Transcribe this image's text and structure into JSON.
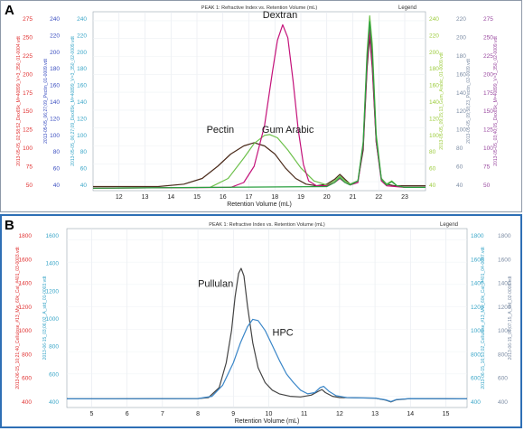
{
  "colors": {
    "pectin": "#4a2a1a",
    "dextran": "#c4137a",
    "gum_arabic": "#6cc04a",
    "extra_green": "#2aa040",
    "pullulan": "#444444",
    "hpc": "#3a86c8",
    "axis_red": "#e03030",
    "axis_blue": "#3a4ec0",
    "axis_cyan": "#3aa6c8",
    "axis_lime": "#9ccc3c",
    "axis_gray": "#7c8ca4",
    "axis_purple": "#9a4aa0"
  },
  "chart_data": [
    {
      "id": "A",
      "panel_label": "A",
      "type": "line",
      "title": "PEAK 1: Refractive Index vs. Retention Volume (mL)",
      "legend_label": "Legend",
      "xlabel": "Retention Volume (mL)",
      "xlim": [
        11,
        23.8
      ],
      "x_ticks": [
        "12",
        "13",
        "14",
        "15",
        "16",
        "17",
        "18",
        "19",
        "20",
        "21",
        "22",
        "23"
      ],
      "grid": true,
      "left_axes": [
        {
          "label": "2013-05-05_02;58;52_Dex65k_M=40899_V=3_350_01-0004.vdt",
          "ticks": [
            "50",
            "75",
            "100",
            "125",
            "150",
            "175",
            "200",
            "225",
            "250",
            "275"
          ],
          "color": "axis_red"
        },
        {
          "label": "2013-05-05_06;27;09_Pectin_01-0009.vdt",
          "ticks": [
            "40",
            "60",
            "80",
            "100",
            "120",
            "140",
            "160",
            "180",
            "200",
            "220",
            "240"
          ],
          "color": "axis_blue"
        },
        {
          "label": "2013-05-05_06;27;09_Dex65k_M=40899_V=3_350_02-0009.vdt",
          "ticks": [
            "40",
            "60",
            "80",
            "100",
            "120",
            "140",
            "160",
            "180",
            "200",
            "220",
            "240"
          ],
          "color": "axis_cyan"
        }
      ],
      "right_axes": [
        {
          "label": "2013-05-05_09;15;13_Gum_Arabic_01-0009.vdt",
          "ticks": [
            "40",
            "60",
            "80",
            "100",
            "120",
            "140",
            "160",
            "180",
            "200",
            "220",
            "240"
          ],
          "color": "axis_lime"
        },
        {
          "label": "2013-05-05_09;58;23_Pectin_02-0009.vdt",
          "ticks": [
            "40",
            "60",
            "80",
            "100",
            "120",
            "140",
            "160",
            "180",
            "200",
            "220"
          ],
          "color": "axis_gray"
        },
        {
          "label": "2013-05-05_03;40;05_Dex65k_M=40899_V=3_350_02-0009.vdt",
          "ticks": [
            "50",
            "75",
            "100",
            "125",
            "150",
            "175",
            "200",
            "225",
            "250",
            "275"
          ],
          "color": "axis_purple"
        }
      ],
      "ylim": [
        30,
        250
      ],
      "annotations": [
        {
          "text": "Dextran",
          "x": 18.2,
          "y": 242
        },
        {
          "text": "Pectin",
          "x": 15.9,
          "y": 101
        },
        {
          "text": "Gum Arabic",
          "x": 18.5,
          "y": 101
        }
      ],
      "series": [
        {
          "color": "pectin",
          "x": [
            11,
            13.5,
            14.5,
            15.2,
            15.8,
            16.3,
            16.8,
            17.2,
            17.6,
            18.0,
            18.4,
            18.8,
            19.2,
            19.6,
            20.0,
            20.3,
            20.5,
            20.7,
            20.9,
            21.2,
            21.4,
            21.55,
            21.65,
            21.75,
            21.9,
            22.1,
            22.3,
            22.6,
            23,
            23.8
          ],
          "y": [
            35,
            35,
            38,
            45,
            60,
            75,
            85,
            89,
            85,
            75,
            58,
            45,
            38,
            36,
            38,
            44,
            50,
            44,
            38,
            42,
            80,
            180,
            220,
            180,
            90,
            45,
            38,
            36,
            36,
            36
          ]
        },
        {
          "color": "gum_arabic",
          "x": [
            11,
            15.5,
            16.2,
            16.8,
            17.2,
            17.6,
            17.8,
            18.1,
            18.5,
            19.0,
            19.5,
            20.0,
            20.3,
            20.5,
            20.7,
            20.9,
            21.2,
            21.4,
            21.55,
            21.65,
            21.75,
            21.9,
            22.1,
            22.3,
            22.5,
            22.7,
            23,
            23.8
          ],
          "y": [
            33,
            34,
            45,
            70,
            88,
            98,
            99,
            95,
            80,
            58,
            42,
            37,
            42,
            48,
            42,
            38,
            42,
            90,
            200,
            245,
            210,
            100,
            45,
            38,
            42,
            36,
            34,
            34
          ]
        },
        {
          "color": "dextran",
          "x": [
            11,
            16.3,
            16.8,
            17.2,
            17.6,
            17.9,
            18.1,
            18.3,
            18.5,
            18.7,
            18.9,
            19.1,
            19.3,
            19.6,
            20.0,
            20.3,
            20.5,
            20.7,
            20.9,
            21.2,
            21.4,
            21.55,
            21.65,
            21.75,
            21.9,
            22.1,
            22.3,
            23,
            23.8
          ],
          "y": [
            33,
            34,
            40,
            60,
            110,
            175,
            215,
            234,
            218,
            165,
            105,
            62,
            42,
            36,
            36,
            40,
            45,
            40,
            37,
            40,
            85,
            185,
            228,
            185,
            90,
            42,
            36,
            34,
            34
          ]
        },
        {
          "color": "extra_green",
          "x": [
            11,
            20.0,
            20.3,
            20.5,
            20.7,
            20.9,
            21.2,
            21.4,
            21.55,
            21.65,
            21.75,
            21.9,
            22.1,
            22.3,
            22.5,
            22.7,
            23,
            23.8
          ],
          "y": [
            33,
            35,
            40,
            46,
            40,
            37,
            42,
            88,
            195,
            238,
            200,
            95,
            44,
            37,
            41,
            36,
            34,
            34
          ]
        }
      ]
    },
    {
      "id": "B",
      "panel_label": "B",
      "type": "line",
      "title": "PEAK 1: Refractive Index vs. Retention Volume (mL)",
      "legend_label": "Legend",
      "xlabel": "Retention Volume (mL)",
      "xlim": [
        4.3,
        15.6
      ],
      "x_ticks": [
        "5",
        "6",
        "7",
        "8",
        "9",
        "10",
        "11",
        "12",
        "13",
        "14",
        "15"
      ],
      "grid": true,
      "left_axes": [
        {
          "label": "2013-06-15_10;21;40_Cellulose_#13_Mw_60k_Cat_#401_03-0003.vdt",
          "ticks": [
            "400",
            "600",
            "800",
            "1000",
            "1200",
            "1400",
            "1600",
            "1800"
          ],
          "color": "axis_red"
        },
        {
          "label": "2013-06-15_03;06;02_A_std_01-0003.vdt",
          "ticks": [
            "400",
            "600",
            "800",
            "1000",
            "1200",
            "1400",
            "1600"
          ],
          "color": "axis_cyan"
        }
      ],
      "right_axes": [
        {
          "label": "2013-06-15_16;53;02_Cellulose_#13_Mw_60k_Cat_#401_04-0007.vdt",
          "ticks": [
            "400",
            "600",
            "800",
            "1000",
            "1200",
            "1400",
            "1600",
            "1800"
          ],
          "color": "axis_cyan"
        },
        {
          "label": "2013-06-15_04;07;15_A_std_02-0008.vdt",
          "ticks": [
            "400",
            "600",
            "800",
            "1000",
            "1200",
            "1400",
            "1600",
            "1800"
          ],
          "color": "axis_gray"
        }
      ],
      "ylim": [
        360,
        1800
      ],
      "annotations": [
        {
          "text": "Pullulan",
          "x": 8.5,
          "y": 1330
        },
        {
          "text": "HPC",
          "x": 10.4,
          "y": 940
        }
      ],
      "series": [
        {
          "color": "pullulan",
          "x": [
            4.3,
            8.0,
            8.3,
            8.6,
            8.8,
            8.95,
            9.05,
            9.15,
            9.22,
            9.3,
            9.4,
            9.55,
            9.7,
            9.9,
            10.1,
            10.3,
            10.6,
            10.9,
            11.2,
            11.4,
            11.5,
            11.6,
            11.8,
            12.0,
            12.5,
            13.0,
            13.3,
            13.45,
            13.6,
            14.0,
            15.6
          ],
          "y": [
            430,
            432,
            440,
            520,
            720,
            980,
            1250,
            1440,
            1480,
            1420,
            1180,
            880,
            680,
            560,
            500,
            470,
            450,
            445,
            460,
            490,
            505,
            480,
            450,
            440,
            438,
            436,
            420,
            405,
            422,
            432,
            430
          ]
        },
        {
          "color": "hpc",
          "x": [
            4.3,
            8.0,
            8.4,
            8.7,
            9.0,
            9.2,
            9.4,
            9.55,
            9.7,
            9.9,
            10.1,
            10.3,
            10.5,
            10.7,
            10.9,
            11.1,
            11.3,
            11.45,
            11.55,
            11.7,
            11.9,
            12.2,
            12.6,
            13.0,
            13.3,
            13.45,
            13.6,
            14.0,
            15.6
          ],
          "y": [
            430,
            432,
            450,
            540,
            720,
            880,
            1010,
            1070,
            1060,
            980,
            860,
            740,
            630,
            560,
            500,
            470,
            480,
            520,
            530,
            490,
            455,
            440,
            437,
            436,
            422,
            408,
            424,
            432,
            430
          ]
        }
      ]
    }
  ]
}
